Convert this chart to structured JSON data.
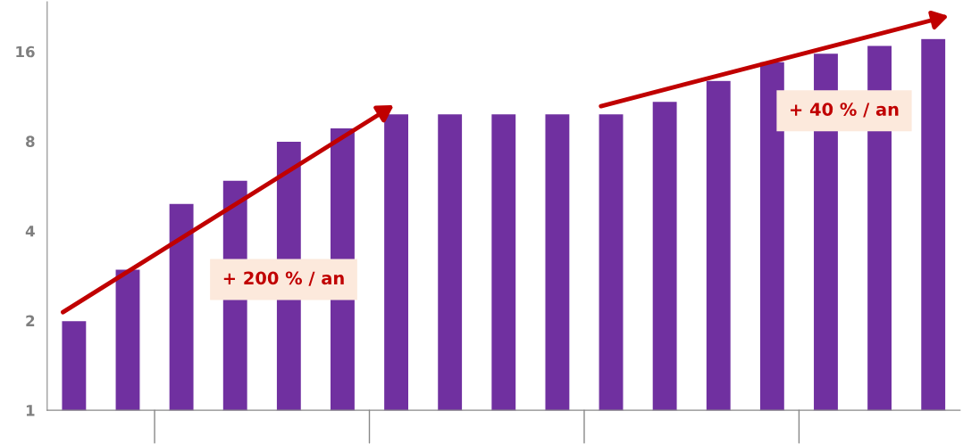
{
  "chart_data": {
    "type": "bar",
    "categories": [
      null,
      null,
      null,
      null,
      null,
      null,
      null,
      null,
      null,
      null,
      null,
      null,
      null,
      null,
      null,
      null,
      null
    ],
    "values": [
      2,
      2.98,
      4.95,
      5.92,
      8,
      8.87,
      9.9,
      9.9,
      9.9,
      9.9,
      9.9,
      10.9,
      12.8,
      14.8,
      15.8,
      16.8,
      17.7
    ],
    "color": "#7030a0",
    "log": true,
    "ylim": [
      1,
      23.5
    ],
    "yticks": [
      1,
      2,
      4,
      8,
      16
    ],
    "grid": false,
    "annotations": [
      "+ 200 % / an",
      "+ 40 % / an"
    ]
  }
}
